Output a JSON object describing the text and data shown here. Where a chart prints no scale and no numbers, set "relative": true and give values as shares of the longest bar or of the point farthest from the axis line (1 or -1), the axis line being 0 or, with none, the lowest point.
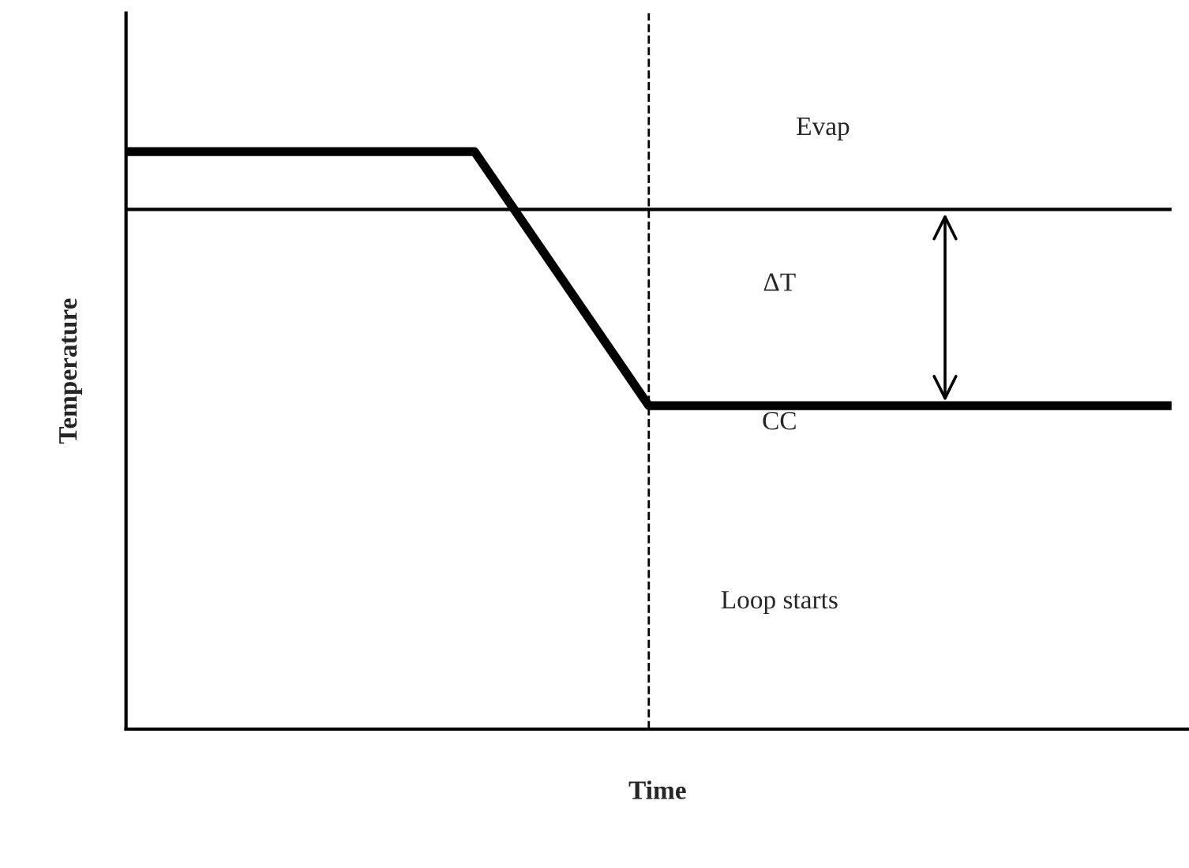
{
  "chart_data": {
    "type": "line",
    "relative": true,
    "xlabel": "Time",
    "ylabel": "Temperature",
    "marker": "none",
    "categories": [
      null,
      null,
      null,
      null,
      null,
      null,
      null,
      null,
      null,
      null,
      null,
      null,
      null
    ],
    "series": [
      {
        "color": "#000000",
        "values": [
          0.9,
          0.9,
          0.9,
          0.9,
          0.9,
          0.9,
          0.9,
          0.9,
          0.9,
          0.9,
          0.9,
          0.9,
          0.9
        ]
      },
      {
        "color": "#000000",
        "values": [
          1,
          1,
          1,
          1,
          1,
          0.78,
          0.56,
          0.56,
          0.56,
          0.56,
          0.56,
          0.56,
          0.56
        ]
      }
    ],
    "annotations": [
      "Evap",
      "ΔT",
      "CC",
      "Loop starts"
    ]
  }
}
